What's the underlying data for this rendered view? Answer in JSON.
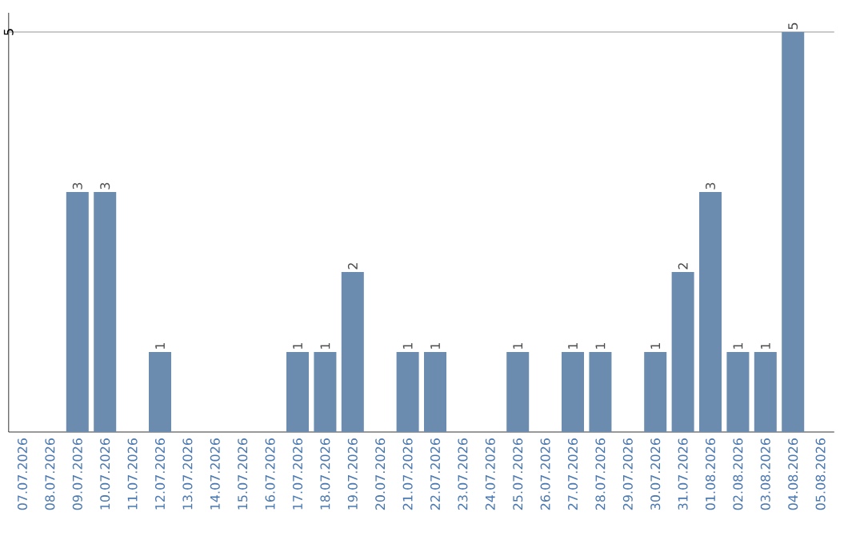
{
  "chart_data": {
    "type": "bar",
    "categories": [
      "07.07.2026",
      "08.07.2026",
      "09.07.2026",
      "10.07.2026",
      "11.07.2026",
      "12.07.2026",
      "13.07.2026",
      "14.07.2026",
      "15.07.2026",
      "16.07.2026",
      "17.07.2026",
      "18.07.2026",
      "19.07.2026",
      "20.07.2026",
      "21.07.2026",
      "22.07.2026",
      "23.07.2026",
      "24.07.2026",
      "25.07.2026",
      "26.07.2026",
      "27.07.2026",
      "28.07.2026",
      "29.07.2026",
      "30.07.2026",
      "31.07.2026",
      "01.08.2026",
      "02.08.2026",
      "03.08.2026",
      "04.08.2026",
      "05.08.2026"
    ],
    "values": [
      0,
      0,
      3,
      3,
      0,
      1,
      0,
      0,
      0,
      0,
      1,
      1,
      2,
      0,
      1,
      1,
      0,
      0,
      1,
      0,
      1,
      1,
      0,
      1,
      2,
      3,
      1,
      1,
      5,
      0
    ],
    "value_labels": [
      null,
      null,
      "3",
      "3",
      null,
      "1",
      null,
      null,
      null,
      null,
      "1",
      "1",
      "2",
      null,
      "1",
      "1",
      null,
      null,
      "1",
      null,
      "1",
      "1",
      null,
      "1",
      "2",
      "3",
      "1",
      "1",
      "5",
      null
    ],
    "color": "#6b8cae",
    "ylim": [
      0,
      5.24
    ],
    "yticks": [
      5
    ],
    "grid": "y"
  }
}
